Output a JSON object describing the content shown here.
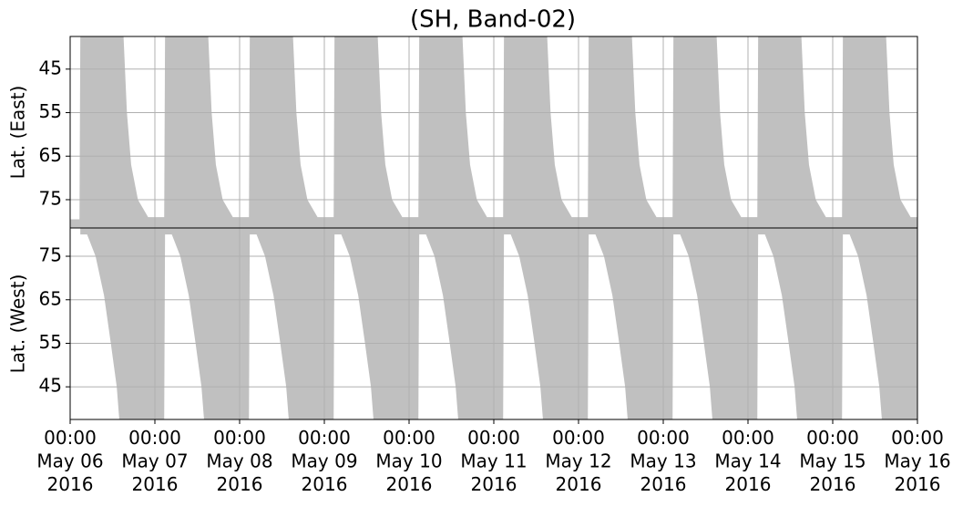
{
  "chart_data": [
    {
      "type": "area",
      "title": "(SH, Band-02)",
      "y_label": "Lat. (East)",
      "color": "#c0c0c0",
      "grid": true,
      "ylim": [
        81.5,
        37.5
      ],
      "yticks": [
        45,
        55,
        65,
        75
      ],
      "xlim": [
        0,
        10
      ],
      "xticks": [
        0,
        1,
        2,
        3,
        4,
        5,
        6,
        7,
        8,
        9,
        10
      ],
      "x": [
        0,
        0.11,
        0.12,
        0.63,
        0.67,
        0.72,
        0.8,
        0.92,
        1.11,
        1.12,
        1.63,
        1.67,
        1.72,
        1.8,
        1.92,
        2.11,
        2.12,
        2.63,
        2.67,
        2.72,
        2.8,
        2.92,
        3.11,
        3.12,
        3.63,
        3.67,
        3.72,
        3.8,
        3.92,
        4.11,
        4.12,
        4.63,
        4.67,
        4.72,
        4.8,
        4.92,
        5.11,
        5.12,
        5.63,
        5.67,
        5.72,
        5.8,
        5.92,
        6.11,
        6.12,
        6.63,
        6.67,
        6.72,
        6.8,
        6.92,
        7.11,
        7.12,
        7.63,
        7.67,
        7.72,
        7.8,
        7.92,
        8.11,
        8.12,
        8.63,
        8.67,
        8.72,
        8.8,
        8.92,
        9.11,
        9.12,
        9.63,
        9.67,
        9.72,
        9.8,
        9.92,
        10
      ],
      "values": [
        79.5,
        79.5,
        37.5,
        37.5,
        55,
        67,
        75,
        79,
        79,
        37.5,
        37.5,
        55,
        67,
        75,
        79,
        79,
        37.5,
        37.5,
        55,
        67,
        75,
        79,
        79,
        37.5,
        37.5,
        55,
        67,
        75,
        79,
        79,
        37.5,
        37.5,
        55,
        67,
        75,
        79,
        79,
        37.5,
        37.5,
        55,
        67,
        75,
        79,
        79,
        37.5,
        37.5,
        55,
        67,
        75,
        79,
        79,
        37.5,
        37.5,
        55,
        67,
        75,
        79,
        79,
        37.5,
        37.5,
        55,
        67,
        75,
        79,
        79,
        37.5,
        37.5,
        55,
        67,
        75,
        79,
        79
      ]
    },
    {
      "type": "area",
      "y_label": "Lat. (West)",
      "color": "#c0c0c0",
      "grid": true,
      "ylim": [
        37.5,
        81.5
      ],
      "yticks": [
        45,
        55,
        65,
        75
      ],
      "xlim": [
        0,
        10
      ],
      "xticks": [
        {
          "value": 0,
          "label": "00:00\nMay 06\n2016"
        },
        {
          "value": 1,
          "label": "00:00\nMay 07\n2016"
        },
        {
          "value": 2,
          "label": "00:00\nMay 08\n2016"
        },
        {
          "value": 3,
          "label": "00:00\nMay 09\n2016"
        },
        {
          "value": 4,
          "label": "00:00\nMay 10\n2016"
        },
        {
          "value": 5,
          "label": "00:00\nMay 11\n2016"
        },
        {
          "value": 6,
          "label": "00:00\nMay 12\n2016"
        },
        {
          "value": 7,
          "label": "00:00\nMay 13\n2016"
        },
        {
          "value": 8,
          "label": "00:00\nMay 14\n2016"
        },
        {
          "value": 9,
          "label": "00:00\nMay 15\n2016"
        },
        {
          "value": 10,
          "label": "00:00\nMay 16\n2016"
        }
      ],
      "x": [
        0.12,
        0.2,
        0.3,
        0.4,
        0.48,
        0.55,
        0.58,
        1.11,
        1.12,
        1.2,
        1.3,
        1.4,
        1.48,
        1.55,
        1.58,
        2.11,
        2.12,
        2.2,
        2.3,
        2.4,
        2.48,
        2.55,
        2.58,
        3.11,
        3.12,
        3.2,
        3.3,
        3.4,
        3.48,
        3.55,
        3.58,
        4.11,
        4.12,
        4.2,
        4.3,
        4.4,
        4.48,
        4.55,
        4.58,
        5.11,
        5.12,
        5.2,
        5.3,
        5.4,
        5.48,
        5.55,
        5.58,
        6.11,
        6.12,
        6.2,
        6.3,
        6.4,
        6.48,
        6.55,
        6.58,
        7.11,
        7.12,
        7.2,
        7.3,
        7.4,
        7.48,
        7.55,
        7.58,
        8.11,
        8.12,
        8.2,
        8.3,
        8.4,
        8.48,
        8.55,
        8.58,
        9.11,
        9.12,
        9.2,
        9.3,
        9.4,
        9.48,
        9.55,
        9.58,
        10
      ],
      "values": [
        80,
        80,
        75,
        66,
        55,
        45,
        37.5,
        37.5,
        80,
        80,
        75,
        66,
        55,
        45,
        37.5,
        37.5,
        80,
        80,
        75,
        66,
        55,
        45,
        37.5,
        37.5,
        80,
        80,
        75,
        66,
        55,
        45,
        37.5,
        37.5,
        80,
        80,
        75,
        66,
        55,
        45,
        37.5,
        37.5,
        80,
        80,
        75,
        66,
        55,
        45,
        37.5,
        37.5,
        80,
        80,
        75,
        66,
        55,
        45,
        37.5,
        37.5,
        80,
        80,
        75,
        66,
        55,
        45,
        37.5,
        37.5,
        80,
        80,
        75,
        66,
        55,
        45,
        37.5,
        37.5,
        80,
        80,
        75,
        66,
        55,
        45,
        37.5,
        37.5
      ]
    }
  ]
}
